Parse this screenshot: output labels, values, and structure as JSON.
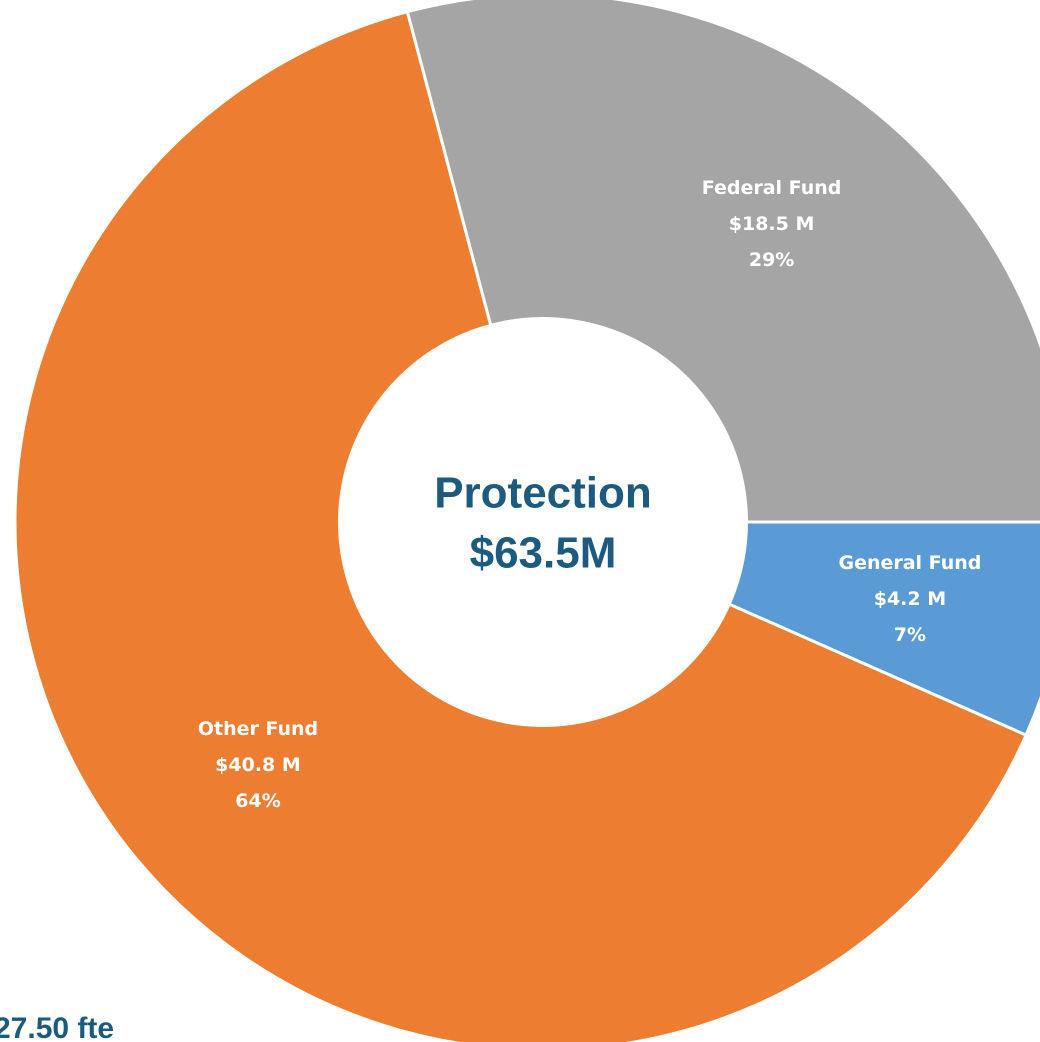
{
  "chart_data": {
    "type": "pie",
    "center_label": [
      "Protection",
      "$63.5M"
    ],
    "categories": [
      "General Fund",
      "Other Fund",
      "Federal Fund"
    ],
    "values": [
      4.2,
      40.8,
      18.5
    ],
    "value_labels": [
      "$4.2 M",
      "$40.8 M",
      "$18.5 M"
    ],
    "percent_labels": [
      "7%",
      "64%",
      "29%"
    ],
    "colors": [
      "#5b9bd5",
      "#ed7d31",
      "#a5a5a5"
    ],
    "footnote": "27.50 fte"
  }
}
